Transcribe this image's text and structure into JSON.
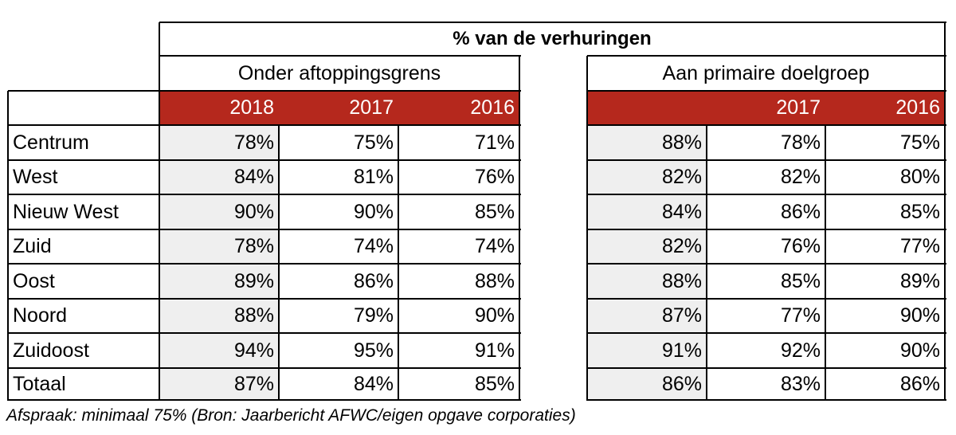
{
  "title": "% van de verhuringen",
  "groups": [
    {
      "label": "Onder aftoppingsgrens",
      "years": [
        "2018",
        "2017",
        "2016"
      ]
    },
    {
      "label": "Aan primaire doelgroep",
      "years": [
        "",
        "2017",
        "2016"
      ]
    }
  ],
  "rows": [
    {
      "region": "Centrum",
      "a": [
        "78%",
        "75%",
        "71%"
      ],
      "b": [
        "88%",
        "78%",
        "75%"
      ]
    },
    {
      "region": "West",
      "a": [
        "84%",
        "81%",
        "76%"
      ],
      "b": [
        "82%",
        "82%",
        "80%"
      ]
    },
    {
      "region": "Nieuw West",
      "a": [
        "90%",
        "90%",
        "85%"
      ],
      "b": [
        "84%",
        "86%",
        "85%"
      ]
    },
    {
      "region": "Zuid",
      "a": [
        "78%",
        "74%",
        "74%"
      ],
      "b": [
        "82%",
        "76%",
        "77%"
      ]
    },
    {
      "region": "Oost",
      "a": [
        "89%",
        "86%",
        "88%"
      ],
      "b": [
        "88%",
        "85%",
        "89%"
      ]
    },
    {
      "region": "Noord",
      "a": [
        "88%",
        "79%",
        "90%"
      ],
      "b": [
        "87%",
        "77%",
        "90%"
      ]
    },
    {
      "region": "Zuidoost",
      "a": [
        "94%",
        "95%",
        "91%"
      ],
      "b": [
        "91%",
        "92%",
        "90%"
      ]
    },
    {
      "region": "Totaal",
      "a": [
        "87%",
        "84%",
        "85%"
      ],
      "b": [
        "86%",
        "83%",
        "86%"
      ]
    }
  ],
  "footnote": "Afspraak: minimaal 75% (Bron: Jaarbericht AFWC/eigen opgave corporaties)",
  "colors": {
    "header_red": "#b5281d",
    "shade": "#efefef"
  }
}
